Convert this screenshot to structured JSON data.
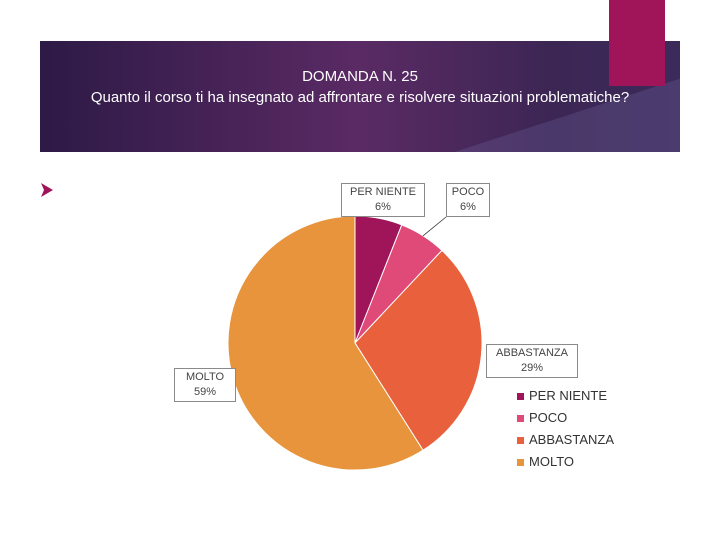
{
  "slide": {
    "title_line1": "DOMANDA N. 25",
    "title_line2": "Quanto il corso ti ha insegnato ad affrontare e risolvere situazioni problematiche?",
    "banner_color": "#4a2658",
    "accent_color": "#a0155a"
  },
  "chart_data": {
    "type": "pie",
    "title": "",
    "slices": [
      {
        "label": "PER NIENTE",
        "value": 6,
        "value_label": "6%",
        "color": "#a0155a"
      },
      {
        "label": "POCO",
        "value": 6,
        "value_label": "6%",
        "color": "#e04a78"
      },
      {
        "label": "ABBASTANZA",
        "value": 29,
        "value_label": "29%",
        "color": "#e8603c"
      },
      {
        "label": "MOLTO",
        "value": 59,
        "value_label": "59%",
        "color": "#e8943c"
      }
    ],
    "legend_position": "bottom-right"
  }
}
